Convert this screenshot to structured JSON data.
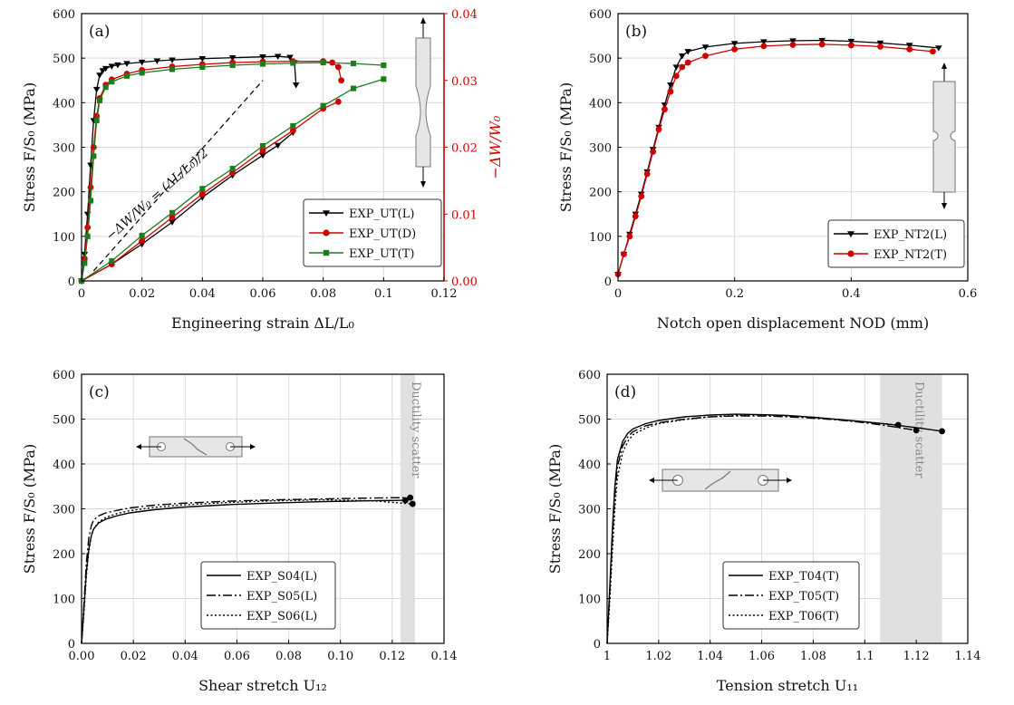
{
  "chart_data": [
    {
      "panel": "(a)",
      "type": "line",
      "xlabel": "Engineering strain ΔL/L₀",
      "ylabel": "Stress F/S₀ (MPa)",
      "y2label": "−ΔW/W₀",
      "xlim": [
        0,
        0.12
      ],
      "ylim": [
        0,
        600
      ],
      "y2lim": [
        0,
        0.04
      ],
      "xticks": [
        "0",
        "0.02",
        "0.04",
        "0.06",
        "0.08",
        "0.1",
        "0.12"
      ],
      "yticks": [
        "0",
        "100",
        "200",
        "300",
        "400",
        "500",
        "600"
      ],
      "y2ticks": [
        "0.00",
        "0.01",
        "0.02",
        "0.03",
        "0.04"
      ],
      "annotation": "−ΔW/W₀ = (ΔL/L₀)/2",
      "legend": [
        "EXP_UT(L)",
        "EXP_UT(D)",
        "EXP_UT(T)"
      ],
      "series": [
        {
          "name": "EXP_UT(L)",
          "color": "#000000",
          "marker": "triangle-down",
          "axis": "left",
          "x": [
            0,
            0.001,
            0.002,
            0.003,
            0.004,
            0.005,
            0.006,
            0.007,
            0.008,
            0.01,
            0.012,
            0.015,
            0.02,
            0.025,
            0.03,
            0.04,
            0.05,
            0.06,
            0.065,
            0.069,
            0.0705,
            0.071
          ],
          "y": [
            0,
            60,
            150,
            260,
            360,
            430,
            462,
            472,
            477,
            482,
            485,
            488,
            491,
            494,
            496,
            499,
            501,
            503,
            504,
            502,
            490,
            440
          ]
        },
        {
          "name": "EXP_UT(D)",
          "color": "#d10000",
          "marker": "circle",
          "axis": "left",
          "x": [
            0,
            0.001,
            0.002,
            0.003,
            0.004,
            0.005,
            0.006,
            0.008,
            0.01,
            0.015,
            0.02,
            0.03,
            0.04,
            0.05,
            0.06,
            0.07,
            0.08,
            0.083,
            0.085,
            0.086
          ],
          "y": [
            0,
            50,
            120,
            210,
            300,
            370,
            410,
            440,
            452,
            465,
            473,
            481,
            486,
            490,
            492,
            493,
            493,
            490,
            480,
            450
          ]
        },
        {
          "name": "EXP_UT(T)",
          "color": "#1e7b1e",
          "marker": "square",
          "axis": "left",
          "x": [
            0,
            0.001,
            0.002,
            0.003,
            0.004,
            0.005,
            0.006,
            0.008,
            0.01,
            0.015,
            0.02,
            0.03,
            0.04,
            0.05,
            0.06,
            0.07,
            0.08,
            0.09,
            0.1
          ],
          "y": [
            0,
            40,
            100,
            180,
            280,
            360,
            405,
            435,
            447,
            460,
            467,
            475,
            480,
            484,
            487,
            489,
            490,
            488,
            484
          ]
        },
        {
          "name": "EXP_UT(L)",
          "color": "#000000",
          "marker": "triangle-down",
          "axis": "right",
          "x": [
            0,
            0.01,
            0.02,
            0.03,
            0.04,
            0.05,
            0.06,
            0.065,
            0.07
          ],
          "y": [
            0,
            0.0025,
            0.0055,
            0.0088,
            0.0125,
            0.0158,
            0.0188,
            0.0203,
            0.0222
          ]
        },
        {
          "name": "EXP_UT(D)",
          "color": "#d10000",
          "marker": "circle",
          "axis": "right",
          "x": [
            0,
            0.01,
            0.02,
            0.03,
            0.04,
            0.05,
            0.06,
            0.07,
            0.08,
            0.085
          ],
          "y": [
            0,
            0.0025,
            0.006,
            0.0095,
            0.013,
            0.0162,
            0.0195,
            0.0225,
            0.0258,
            0.0268
          ]
        },
        {
          "name": "EXP_UT(T)",
          "color": "#1e7b1e",
          "marker": "square",
          "axis": "right",
          "x": [
            0,
            0.01,
            0.02,
            0.03,
            0.04,
            0.05,
            0.06,
            0.07,
            0.08,
            0.09,
            0.1
          ],
          "y": [
            0,
            0.003,
            0.0068,
            0.0102,
            0.0138,
            0.0168,
            0.0202,
            0.0232,
            0.0262,
            0.0288,
            0.0302
          ]
        }
      ]
    },
    {
      "panel": "(b)",
      "type": "line",
      "xlabel": "Notch open displacement NOD (mm)",
      "ylabel": "Stress F/S₀ (MPa)",
      "xlim": [
        0,
        0.6
      ],
      "ylim": [
        0,
        600
      ],
      "xticks": [
        "0",
        "0.2",
        "0.4",
        "0.6"
      ],
      "yticks": [
        "0",
        "100",
        "200",
        "300",
        "400",
        "500",
        "600"
      ],
      "legend": [
        "EXP_NT2(L)",
        "EXP_NT2(T)"
      ],
      "series": [
        {
          "name": "EXP_NT2(L)",
          "color": "#000000",
          "marker": "triangle-down",
          "x": [
            0,
            0.01,
            0.02,
            0.03,
            0.04,
            0.05,
            0.06,
            0.07,
            0.08,
            0.09,
            0.1,
            0.11,
            0.12,
            0.15,
            0.2,
            0.25,
            0.3,
            0.35,
            0.4,
            0.45,
            0.5,
            0.55
          ],
          "y": [
            15,
            60,
            105,
            150,
            195,
            245,
            295,
            345,
            395,
            440,
            480,
            505,
            515,
            525,
            533,
            537,
            539,
            540,
            538,
            534,
            529,
            523
          ]
        },
        {
          "name": "EXP_NT2(T)",
          "color": "#d10000",
          "marker": "circle",
          "x": [
            0,
            0.01,
            0.02,
            0.03,
            0.04,
            0.05,
            0.06,
            0.07,
            0.08,
            0.09,
            0.1,
            0.11,
            0.12,
            0.15,
            0.2,
            0.25,
            0.3,
            0.35,
            0.4,
            0.45,
            0.5,
            0.54
          ],
          "y": [
            15,
            60,
            100,
            145,
            190,
            240,
            290,
            340,
            385,
            425,
            460,
            480,
            490,
            505,
            520,
            527,
            530,
            531,
            529,
            526,
            520,
            515
          ]
        }
      ]
    },
    {
      "panel": "(c)",
      "type": "line",
      "xlabel": "Shear stretch U₁₂",
      "ylabel": "Stress F/S₀ (MPa)",
      "xlim": [
        0,
        0.15
      ],
      "ylim": [
        0,
        600
      ],
      "xticks": [
        "0.00",
        "0.02",
        "0.04",
        "0.06",
        "0.08",
        "0.10",
        "0.12",
        "0.14"
      ],
      "yticks": [
        "0",
        "100",
        "200",
        "300",
        "400",
        "500",
        "600"
      ],
      "band": {
        "x": [
          0.132,
          0.138
        ],
        "label": "Ductility scatter"
      },
      "legend": [
        "EXP_S04(L)",
        "EXP_S05(L)",
        "EXP_S06(L)"
      ],
      "series": [
        {
          "name": "EXP_S04(L)",
          "dash": "solid",
          "x": [
            0,
            0.001,
            0.002,
            0.003,
            0.004,
            0.005,
            0.007,
            0.01,
            0.015,
            0.02,
            0.03,
            0.04,
            0.06,
            0.08,
            0.1,
            0.12,
            0.134
          ],
          "y": [
            0,
            80,
            160,
            210,
            240,
            255,
            268,
            277,
            285,
            291,
            298,
            303,
            309,
            313,
            316,
            318,
            319
          ]
        },
        {
          "name": "EXP_S05(L)",
          "dash": "dashdot",
          "x": [
            0,
            0.001,
            0.002,
            0.003,
            0.004,
            0.005,
            0.007,
            0.01,
            0.015,
            0.02,
            0.03,
            0.04,
            0.06,
            0.08,
            0.1,
            0.12,
            0.136
          ],
          "y": [
            0,
            90,
            180,
            235,
            262,
            275,
            284,
            291,
            297,
            302,
            308,
            312,
            317,
            320,
            322,
            324,
            325
          ]
        },
        {
          "name": "EXP_S06(L)",
          "dash": "dotted",
          "x": [
            0,
            0.001,
            0.002,
            0.003,
            0.004,
            0.005,
            0.007,
            0.01,
            0.015,
            0.02,
            0.03,
            0.04,
            0.06,
            0.08,
            0.1,
            0.12,
            0.137
          ],
          "y": [
            0,
            70,
            150,
            205,
            238,
            255,
            270,
            281,
            290,
            296,
            303,
            308,
            314,
            318,
            320,
            318,
            311
          ]
        }
      ]
    },
    {
      "panel": "(d)",
      "type": "line",
      "xlabel": "Tension stretch U₁₁",
      "ylabel": "Stress F/S₀ (MPa)",
      "xlim": [
        1,
        1.14
      ],
      "ylim": [
        0,
        600
      ],
      "xticks": [
        "1",
        "1.02",
        "1.04",
        "1.06",
        "1.08",
        "1.1",
        "1.12",
        "1.14"
      ],
      "yticks": [
        "0",
        "100",
        "200",
        "300",
        "400",
        "500",
        "600"
      ],
      "band": {
        "x": [
          1.106,
          1.13
        ],
        "label": "Ductility scatter"
      },
      "legend": [
        "EXP_T04(T)",
        "EXP_T05(T)",
        "EXP_T06(T)"
      ],
      "series": [
        {
          "name": "EXP_T04(T)",
          "dash": "solid",
          "x": [
            1,
            1.001,
            1.002,
            1.003,
            1.004,
            1.006,
            1.008,
            1.01,
            1.015,
            1.02,
            1.03,
            1.04,
            1.05,
            1.06,
            1.07,
            1.08,
            1.09,
            1.1,
            1.11,
            1.12,
            1.13
          ],
          "y": [
            0,
            120,
            250,
            350,
            410,
            450,
            468,
            478,
            490,
            497,
            505,
            509,
            511,
            510,
            508,
            504,
            499,
            494,
            488,
            481,
            473
          ]
        },
        {
          "name": "EXP_T05(T)",
          "dash": "dashdot",
          "x": [
            1,
            1.001,
            1.002,
            1.003,
            1.004,
            1.006,
            1.008,
            1.01,
            1.015,
            1.02,
            1.03,
            1.04,
            1.05,
            1.06,
            1.07,
            1.08,
            1.09,
            1.1,
            1.11,
            1.12
          ],
          "y": [
            0,
            110,
            230,
            330,
            395,
            440,
            460,
            472,
            485,
            492,
            500,
            505,
            507,
            507,
            505,
            502,
            498,
            492,
            484,
            475
          ]
        },
        {
          "name": "EXP_T06(T)",
          "dash": "dotted",
          "x": [
            1,
            1.001,
            1.002,
            1.003,
            1.004,
            1.006,
            1.008,
            1.01,
            1.015,
            1.02,
            1.03,
            1.04,
            1.05,
            1.06,
            1.07,
            1.08,
            1.09,
            1.1,
            1.113
          ],
          "y": [
            0,
            90,
            200,
            300,
            370,
            425,
            450,
            465,
            480,
            490,
            499,
            505,
            508,
            509,
            507,
            504,
            499,
            494,
            487
          ]
        }
      ]
    }
  ]
}
